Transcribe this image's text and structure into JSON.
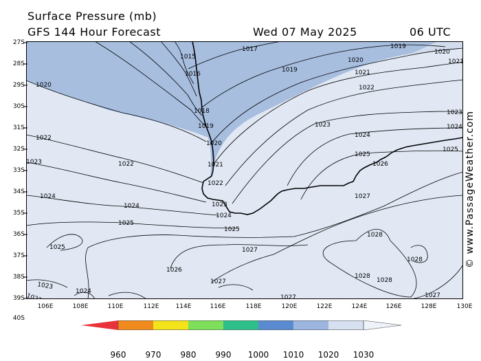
{
  "header": {
    "title": "Surface Pressure (mb)",
    "subtitle": "GFS 144 Hour Forecast",
    "valid_date": "Wed 07 May 2025",
    "valid_time": "06 UTC"
  },
  "map": {
    "latitude_labels": [
      "27S",
      "28S",
      "29S",
      "30S",
      "31S",
      "32S",
      "33S",
      "34S",
      "35S",
      "36S",
      "37S",
      "38S",
      "39S",
      "40S"
    ],
    "longitude_labels": [
      "106E",
      "108E",
      "110E",
      "112E",
      "114E",
      "116E",
      "118E",
      "120E",
      "122E",
      "124E",
      "126E",
      "128E",
      "130E"
    ],
    "isobar_labels": [
      {
        "text": "1015"
      },
      {
        "text": "1016"
      },
      {
        "text": "1017"
      },
      {
        "text": "1018"
      },
      {
        "text": "1019"
      },
      {
        "text": "1019"
      },
      {
        "text": "1019"
      },
      {
        "text": "1020"
      },
      {
        "text": "1020"
      },
      {
        "text": "1020"
      },
      {
        "text": "1020"
      },
      {
        "text": "1021"
      },
      {
        "text": "1021"
      },
      {
        "text": "1021"
      },
      {
        "text": "1022"
      },
      {
        "text": "1022"
      },
      {
        "text": "1022"
      },
      {
        "text": "1022"
      },
      {
        "text": "1023"
      },
      {
        "text": "1023"
      },
      {
        "text": "1023"
      },
      {
        "text": "1023"
      },
      {
        "text": "1024"
      },
      {
        "text": "1024"
      },
      {
        "text": "1024"
      },
      {
        "text": "1024"
      },
      {
        "text": "1024"
      },
      {
        "text": "1025"
      },
      {
        "text": "1025"
      },
      {
        "text": "1025"
      },
      {
        "text": "1025"
      },
      {
        "text": "1025"
      },
      {
        "text": "1026"
      },
      {
        "text": "1026"
      },
      {
        "text": "1027"
      },
      {
        "text": "1027"
      },
      {
        "text": "1027"
      },
      {
        "text": "1027"
      },
      {
        "text": "1027"
      },
      {
        "text": "1028"
      },
      {
        "text": "1028"
      },
      {
        "text": "1028"
      },
      {
        "text": "1028"
      },
      {
        "text": "1023"
      },
      {
        "text": "1022"
      },
      {
        "text": "1024"
      }
    ],
    "colors": {
      "low_fill": "#a7bedf",
      "high_fill": "#e1e8f4",
      "isobar": "#000000",
      "coast": "#000000"
    }
  },
  "colorbar": {
    "labels": [
      "960",
      "970",
      "980",
      "990",
      "1000",
      "1010",
      "1020",
      "1030"
    ],
    "colors": [
      "#e8333a",
      "#f08a1c",
      "#f2e31a",
      "#7ee05a",
      "#2ec08a",
      "#5a8ad0",
      "#9cb6e0",
      "#d6e0f0"
    ]
  },
  "credit": "© www.PassageWeather.com"
}
